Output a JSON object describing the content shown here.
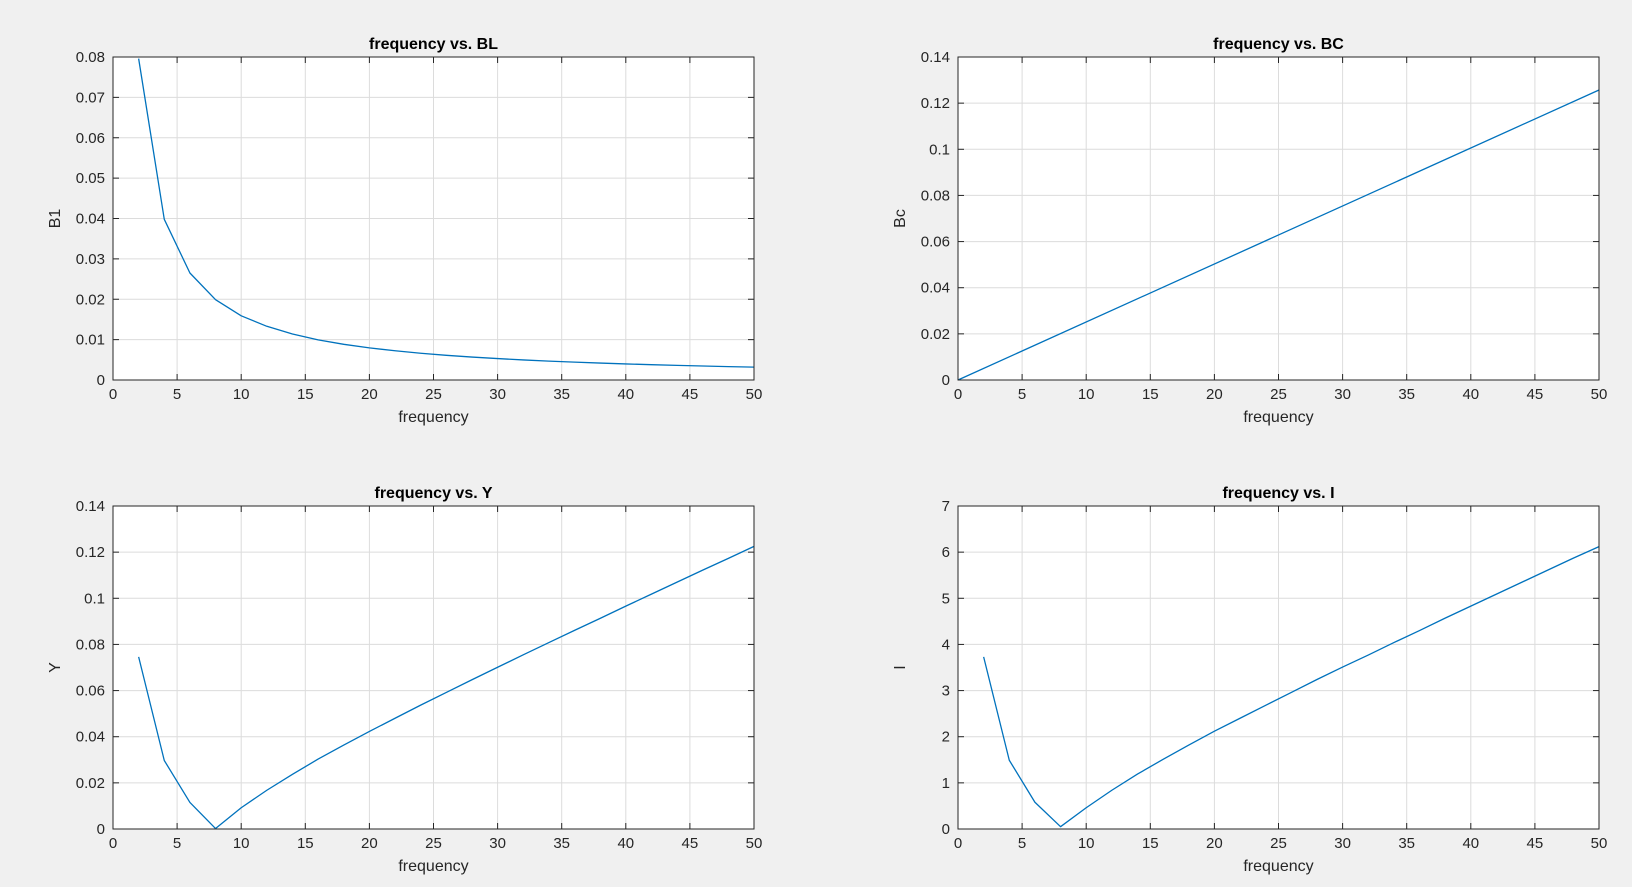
{
  "chart_data": [
    {
      "type": "line",
      "title": "frequency vs. BL",
      "xlabel": "frequency",
      "ylabel": "B1",
      "xlim": [
        0,
        50
      ],
      "ylim": [
        0,
        0.08
      ],
      "xticks": [
        0,
        5,
        10,
        15,
        20,
        25,
        30,
        35,
        40,
        45,
        50
      ],
      "yticks": [
        0,
        0.01,
        0.02,
        0.03,
        0.04,
        0.05,
        0.06,
        0.07,
        0.08
      ],
      "ytick_labels": [
        "0",
        "0.01",
        "0.02",
        "0.03",
        "0.04",
        "0.05",
        "0.06",
        "0.07",
        "0.08"
      ],
      "grid": true,
      "series": [
        {
          "color": "#0072bd",
          "x": [
            2,
            4,
            6,
            8,
            10,
            12,
            14,
            16,
            18,
            20,
            22,
            24,
            26,
            28,
            30,
            32,
            34,
            36,
            38,
            40,
            42,
            44,
            46,
            48,
            50
          ],
          "y": [
            0.0796,
            0.0398,
            0.0265,
            0.0199,
            0.0159,
            0.0133,
            0.0114,
            0.00995,
            0.00884,
            0.00796,
            0.00724,
            0.00663,
            0.00612,
            0.00568,
            0.00531,
            0.00497,
            0.00468,
            0.00442,
            0.00419,
            0.00398,
            0.00379,
            0.00362,
            0.00346,
            0.00332,
            0.00318
          ]
        }
      ]
    },
    {
      "type": "line",
      "title": "frequency vs. BC",
      "xlabel": "frequency",
      "ylabel": "Bc",
      "xlim": [
        0,
        50
      ],
      "ylim": [
        0,
        0.14
      ],
      "xticks": [
        0,
        5,
        10,
        15,
        20,
        25,
        30,
        35,
        40,
        45,
        50
      ],
      "yticks": [
        0,
        0.02,
        0.04,
        0.06,
        0.08,
        0.1,
        0.12,
        0.14
      ],
      "ytick_labels": [
        "0",
        "0.02",
        "0.04",
        "0.06",
        "0.08",
        "0.1",
        "0.12",
        "0.14"
      ],
      "grid": true,
      "series": [
        {
          "color": "#0072bd",
          "x": [
            0,
            50
          ],
          "y": [
            0,
            0.1257
          ]
        }
      ]
    },
    {
      "type": "line",
      "title": "frequency vs. Y",
      "xlabel": "frequency",
      "ylabel": "Y",
      "xlim": [
        0,
        50
      ],
      "ylim": [
        0,
        0.14
      ],
      "xticks": [
        0,
        5,
        10,
        15,
        20,
        25,
        30,
        35,
        40,
        45,
        50
      ],
      "yticks": [
        0,
        0.02,
        0.04,
        0.06,
        0.08,
        0.1,
        0.12,
        0.14
      ],
      "ytick_labels": [
        "0",
        "0.02",
        "0.04",
        "0.06",
        "0.08",
        "0.1",
        "0.12",
        "0.14"
      ],
      "grid": true,
      "series": [
        {
          "color": "#0072bd",
          "x": [
            2,
            4,
            6,
            8,
            10,
            12,
            14,
            16,
            18,
            20,
            22,
            24,
            26,
            28,
            30,
            32,
            34,
            36,
            38,
            40,
            42,
            44,
            46,
            48,
            50
          ],
          "y": [
            0.0746,
            0.0297,
            0.0115,
            0.0002,
            0.0092,
            0.0168,
            0.0237,
            0.0303,
            0.0364,
            0.0423,
            0.048,
            0.0537,
            0.0592,
            0.0647,
            0.0701,
            0.0755,
            0.0808,
            0.0861,
            0.0913,
            0.0966,
            0.1018,
            0.107,
            0.1122,
            0.1173,
            0.1225
          ]
        }
      ]
    },
    {
      "type": "line",
      "title": "frequency vs. I",
      "xlabel": "frequency",
      "ylabel": "I",
      "xlim": [
        0,
        50
      ],
      "ylim": [
        0,
        7
      ],
      "xticks": [
        0,
        5,
        10,
        15,
        20,
        25,
        30,
        35,
        40,
        45,
        50
      ],
      "yticks": [
        0,
        1,
        2,
        3,
        4,
        5,
        6,
        7
      ],
      "ytick_labels": [
        "0",
        "1",
        "2",
        "3",
        "4",
        "5",
        "6",
        "7"
      ],
      "grid": true,
      "series": [
        {
          "color": "#0072bd",
          "x": [
            2,
            4,
            6,
            8,
            10,
            12,
            14,
            16,
            18,
            20,
            22,
            24,
            26,
            28,
            30,
            32,
            34,
            36,
            38,
            40,
            42,
            44,
            46,
            48,
            50
          ],
          "y": [
            3.73,
            1.49,
            0.58,
            0.05,
            0.46,
            0.84,
            1.19,
            1.51,
            1.82,
            2.12,
            2.4,
            2.68,
            2.96,
            3.24,
            3.51,
            3.77,
            4.04,
            4.3,
            4.57,
            4.83,
            5.09,
            5.35,
            5.61,
            5.87,
            6.12
          ]
        }
      ]
    }
  ]
}
